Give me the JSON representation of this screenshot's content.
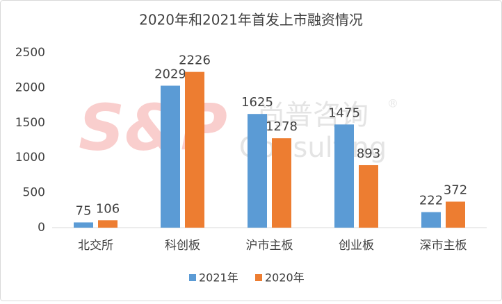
{
  "chart_data": {
    "type": "bar",
    "title": "2020年和2021年首发上市融资情况",
    "categories": [
      "北交所",
      "科创板",
      "沪市主板",
      "创业板",
      "深市主板"
    ],
    "series": [
      {
        "name": "2021年",
        "color": "#5b9bd5",
        "values": [
          75,
          2029,
          1625,
          1475,
          222
        ]
      },
      {
        "name": "2020年",
        "color": "#ed7d31",
        "values": [
          106,
          2226,
          1278,
          893,
          372
        ]
      }
    ],
    "ylim": [
      0,
      2500
    ],
    "yticks": [
      0,
      500,
      1000,
      1500,
      2000,
      2500
    ],
    "grid": false,
    "legend": "bottom",
    "watermark": {
      "logo": "S&P",
      "name": "尚普咨询",
      "mark": "®",
      "sub": "Consulting"
    }
  }
}
